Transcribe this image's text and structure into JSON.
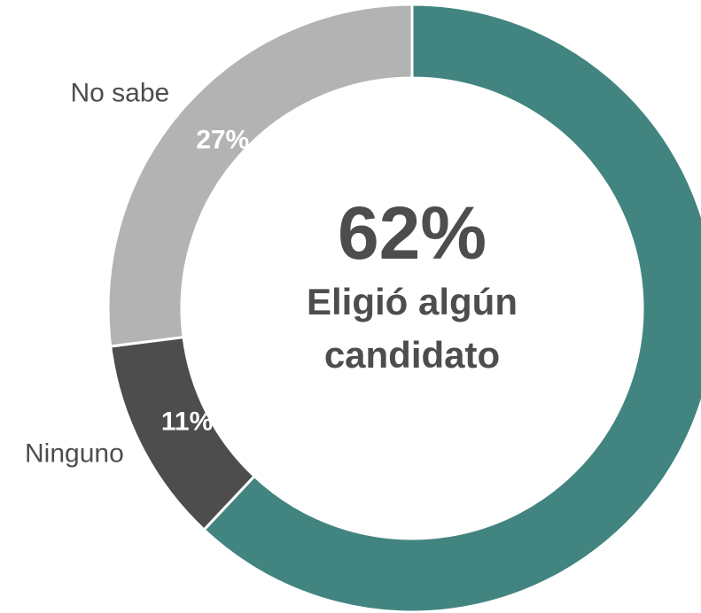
{
  "chart_data": {
    "type": "donut",
    "categories": [
      "Eligió algún candidato",
      "Ninguno",
      "No sabe"
    ],
    "values": [
      62,
      11,
      27
    ],
    "value_labels": [
      "62%",
      "11%",
      "27%"
    ],
    "colors": [
      "#418480",
      "#4d4d4d",
      "#b3b3b3"
    ]
  }
}
